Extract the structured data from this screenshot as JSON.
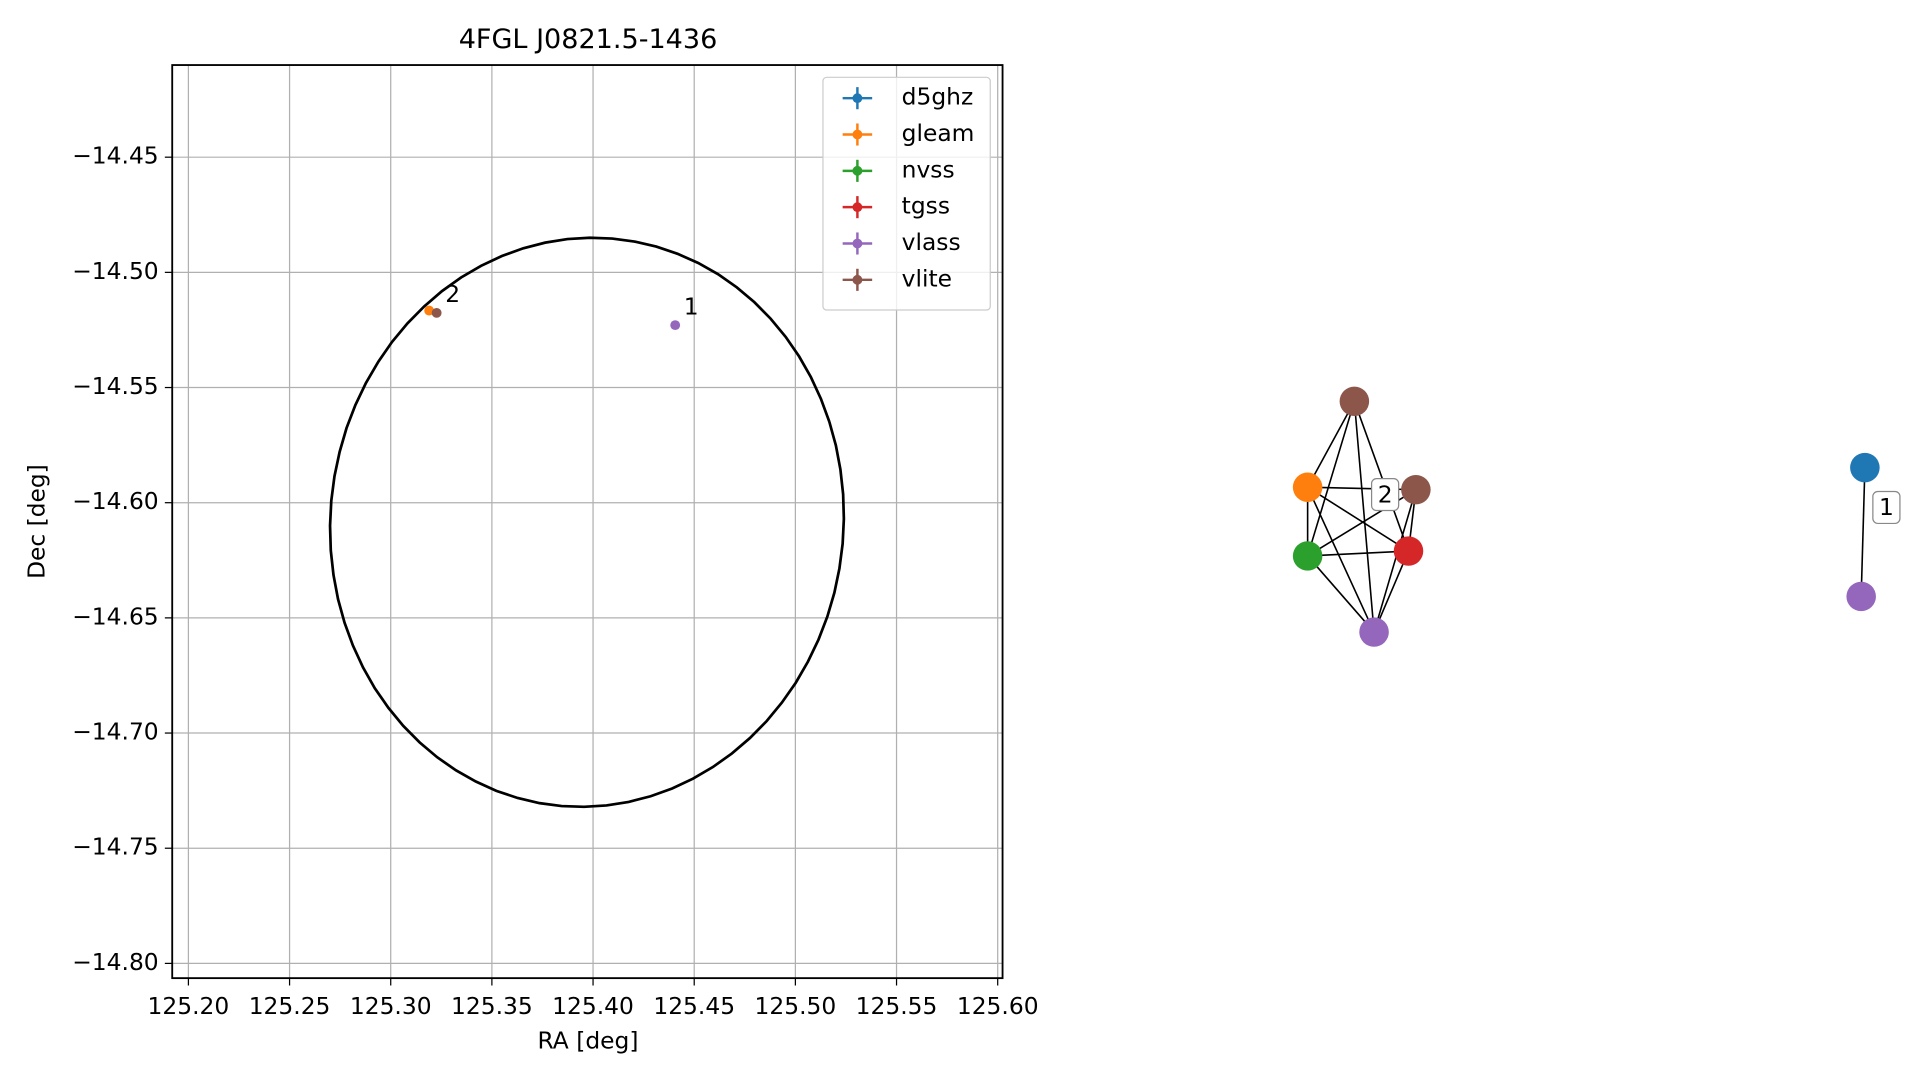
{
  "chart_data": [
    {
      "type": "scatter",
      "title": "4FGL J0821.5-1436",
      "xlabel": "RA [deg]",
      "ylabel": "Dec [deg]",
      "xlim": [
        125.192,
        125.6024
      ],
      "ylim": [
        -14.8064,
        -14.41
      ],
      "xticks": [
        {
          "value": 125.2,
          "label": "125.20"
        },
        125.25,
        {
          "value": 125.3,
          "label": "125.30"
        },
        125.35,
        {
          "value": 125.4,
          "label": "125.40"
        },
        125.45,
        {
          "value": 125.5,
          "label": "125.50"
        },
        125.55,
        {
          "value": 125.6,
          "label": "125.60"
        }
      ],
      "yticks": [
        {
          "value": -14.45,
          "label": "−14.45"
        },
        {
          "value": -14.5,
          "label": "−14.50"
        },
        {
          "value": -14.55,
          "label": "−14.55"
        },
        {
          "value": -14.6,
          "label": "−14.60"
        },
        {
          "value": -14.65,
          "label": "−14.65"
        },
        {
          "value": -14.7,
          "label": "−14.70"
        },
        {
          "value": -14.75,
          "label": "−14.75"
        },
        {
          "value": -14.8,
          "label": "−14.80"
        }
      ],
      "grid": true,
      "legend": "upper right",
      "series": [
        {
          "name": "d5ghz",
          "color": "#1f77b4",
          "x": [],
          "y": []
        },
        {
          "name": "gleam",
          "color": "#ff7f0e",
          "x": [
            125.319
          ],
          "y": [
            -14.5166
          ]
        },
        {
          "name": "nvss",
          "color": "#2ca02c",
          "x": [],
          "y": []
        },
        {
          "name": "tgss",
          "color": "#d62728",
          "x": [],
          "y": []
        },
        {
          "name": "vlass",
          "color": "#9467bd",
          "x": [
            125.4406
          ],
          "y": [
            -14.5229
          ]
        },
        {
          "name": "vlite",
          "color": "#8c564b",
          "x": [
            125.3227
          ],
          "y": [
            -14.5176
          ]
        }
      ],
      "ellipse": {
        "center": [
          125.397,
          -14.6085
        ],
        "width": 0.255,
        "height": 0.246,
        "angle": 20,
        "color": "#000000"
      },
      "annotations": [
        {
          "text": "2",
          "x": 125.3227,
          "y": -14.5176
        },
        {
          "text": "1",
          "x": 125.4406,
          "y": -14.5229
        }
      ]
    },
    {
      "type": "graph",
      "nodes": [
        {
          "color": "#8c564b"
        },
        {
          "color": "#ff7f0e"
        },
        {
          "color": "#8c564b"
        },
        {
          "color": "#2ca02c"
        },
        {
          "color": "#d62728"
        },
        {
          "color": "#9467bd"
        },
        {
          "color": "#1f77b4"
        },
        {
          "color": "#9467bd"
        }
      ],
      "edges": [
        [
          0,
          1
        ],
        [
          0,
          3
        ],
        [
          0,
          4
        ],
        [
          0,
          5
        ],
        [
          1,
          2
        ],
        [
          1,
          3
        ],
        [
          1,
          4
        ],
        [
          1,
          5
        ],
        [
          2,
          3
        ],
        [
          2,
          4
        ],
        [
          2,
          5
        ],
        [
          3,
          4
        ],
        [
          3,
          5
        ],
        [
          4,
          5
        ],
        [
          6,
          7
        ]
      ],
      "edge_labels": [
        {
          "text": "2",
          "edge": 4
        },
        {
          "text": "1",
          "edge": 14
        }
      ]
    }
  ]
}
